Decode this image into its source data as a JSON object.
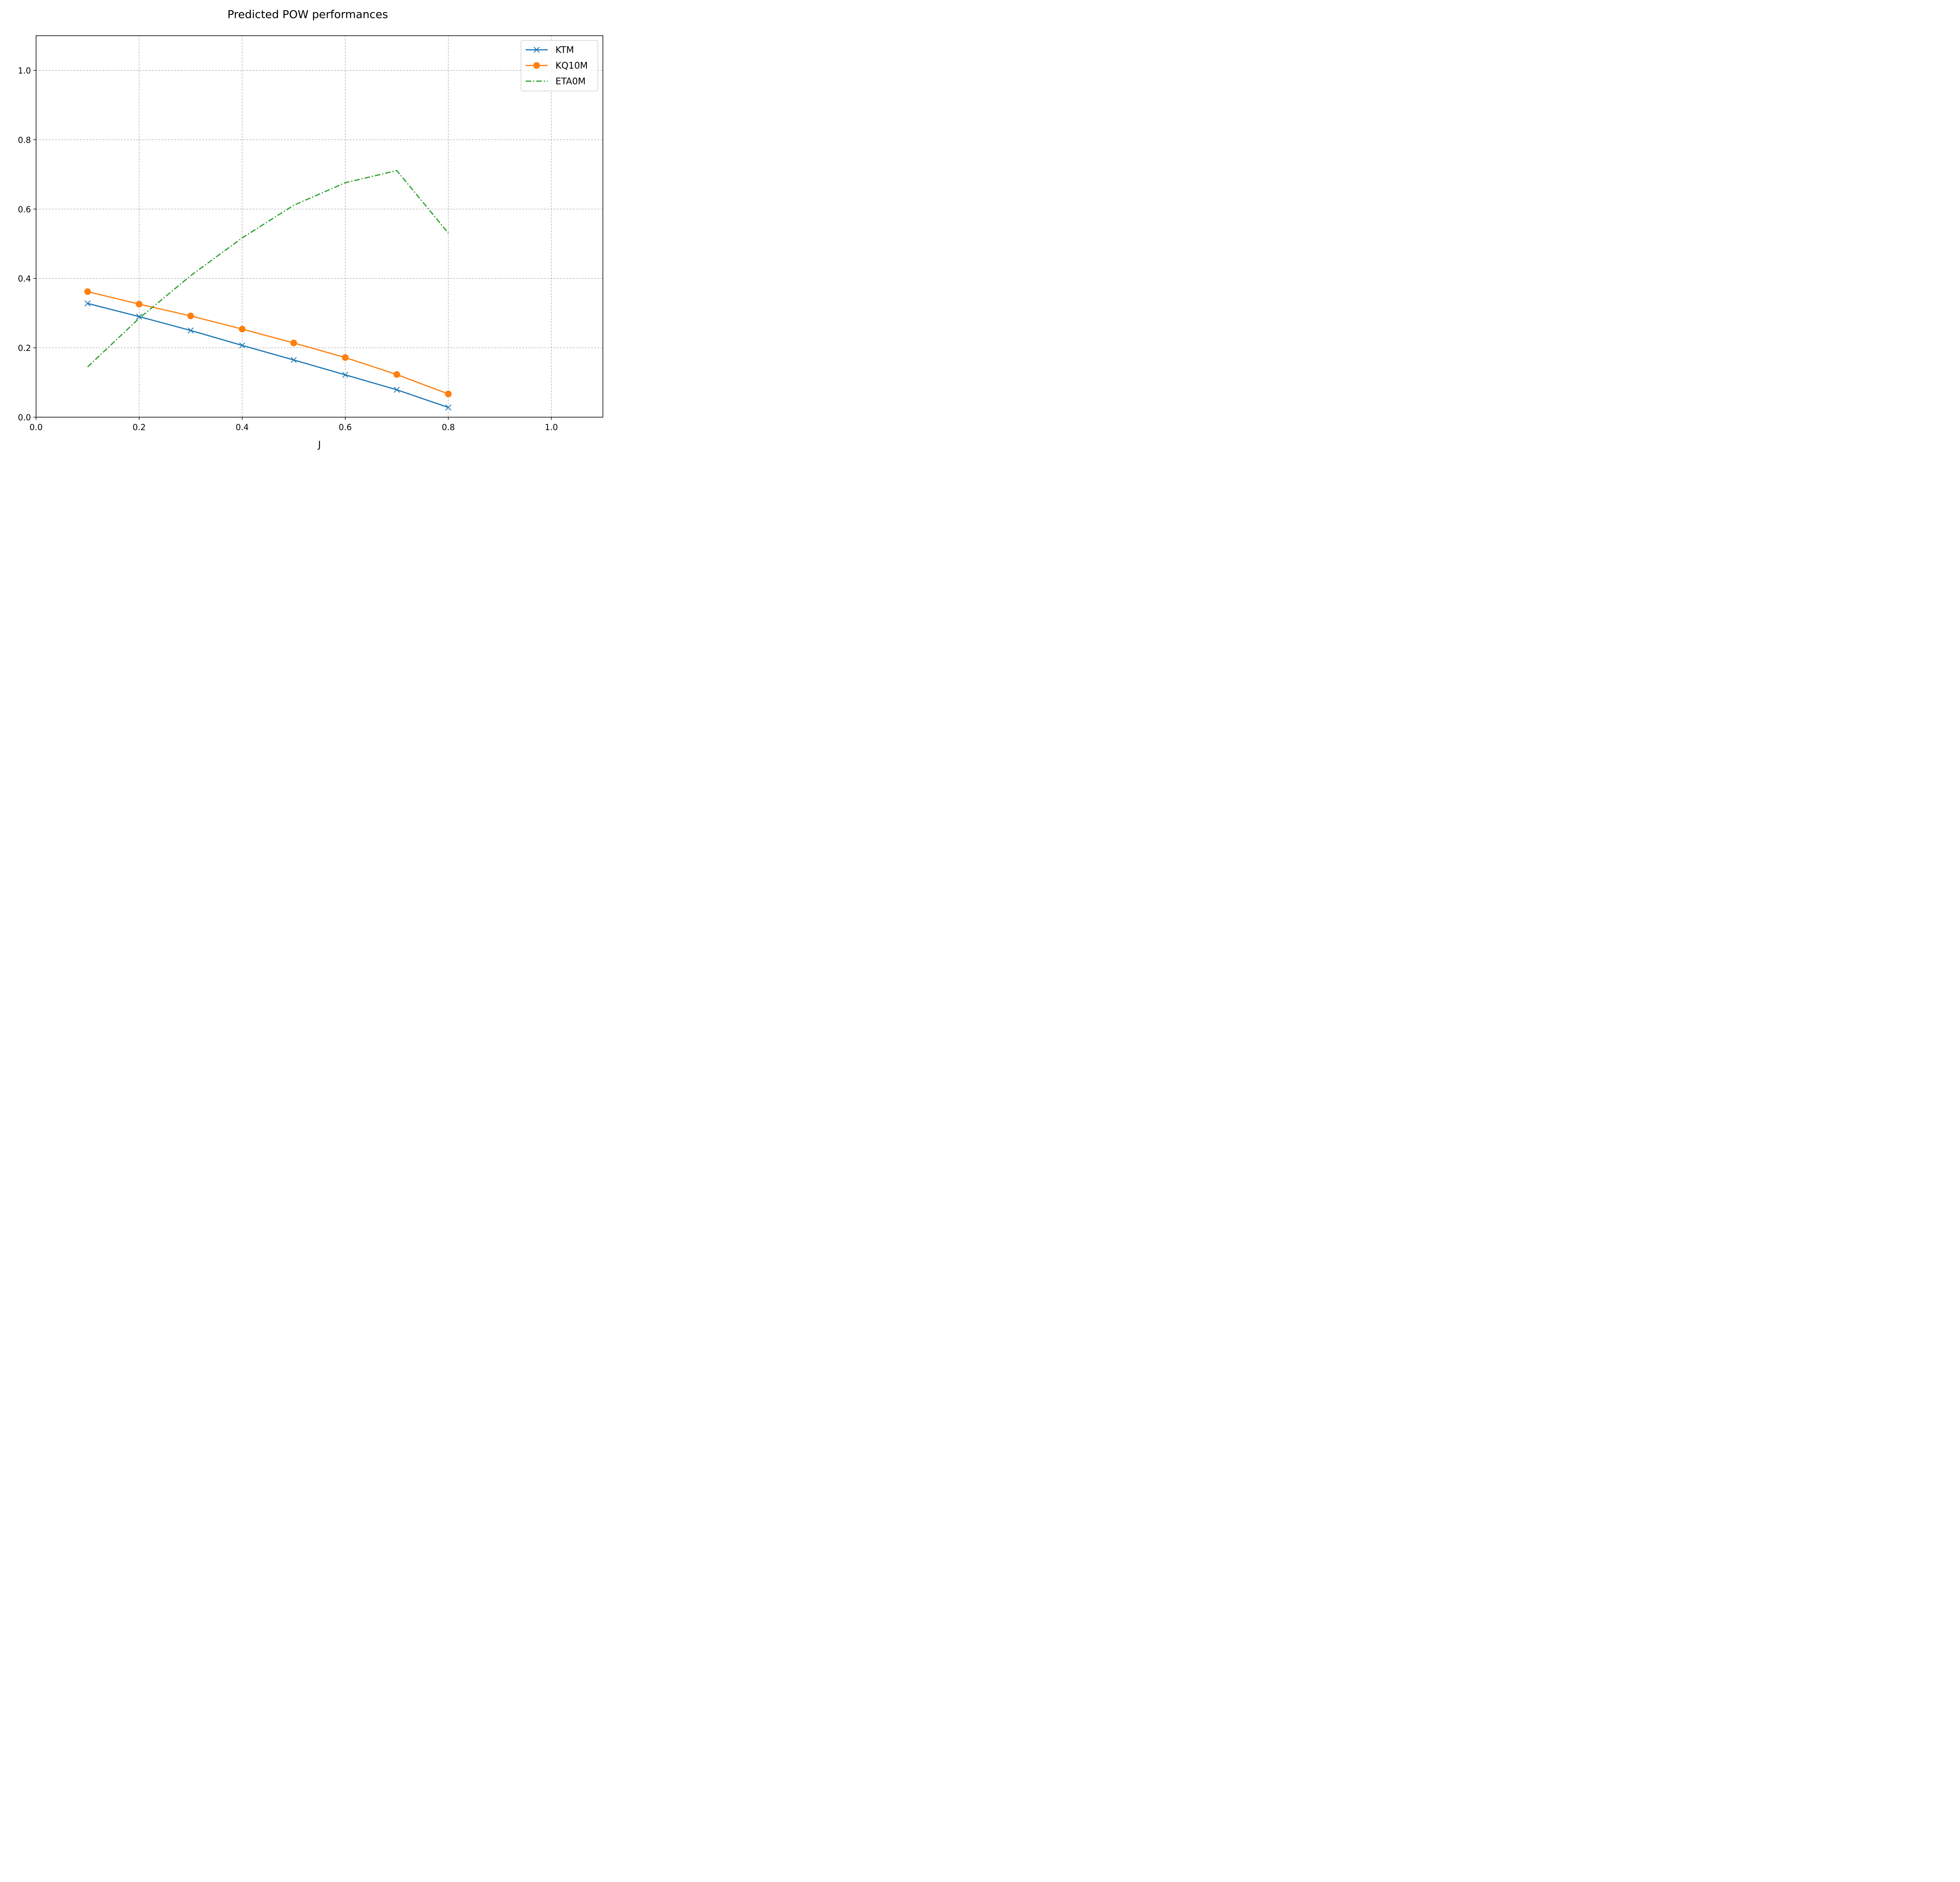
{
  "chart_data": {
    "type": "line",
    "title": "Predicted POW performances",
    "xlabel": "J",
    "ylabel": "",
    "xlim": [
      0.0,
      1.1
    ],
    "ylim": [
      0.0,
      1.1
    ],
    "xticks": [
      0.0,
      0.2,
      0.4,
      0.6,
      0.8,
      1.0
    ],
    "yticks": [
      0.0,
      0.2,
      0.4,
      0.6,
      0.8,
      1.0
    ],
    "xtick_labels": [
      "0.0",
      "0.2",
      "0.4",
      "0.6",
      "0.8",
      "1.0"
    ],
    "ytick_labels": [
      "0.0",
      "0.2",
      "0.4",
      "0.6",
      "0.8",
      "1.0"
    ],
    "grid": true,
    "legend_position": "top-right",
    "x": [
      0.1,
      0.2,
      0.3,
      0.4,
      0.5,
      0.6,
      0.7,
      0.8
    ],
    "series": [
      {
        "name": "KTM",
        "color": "#1f77b4",
        "marker": "x",
        "linestyle": "solid",
        "values": [
          0.328,
          0.29,
          0.25,
          0.207,
          0.165,
          0.122,
          0.079,
          0.028
        ]
      },
      {
        "name": "KQ10M",
        "color": "#ff7f0e",
        "marker": "circle",
        "linestyle": "solid",
        "values": [
          0.362,
          0.326,
          0.292,
          0.254,
          0.214,
          0.172,
          0.123,
          0.067
        ]
      },
      {
        "name": "ETA0M",
        "color": "#2ca02c",
        "marker": "none",
        "linestyle": "dashdot",
        "values": [
          0.145,
          0.285,
          0.408,
          0.517,
          0.611,
          0.676,
          0.711,
          0.531
        ]
      }
    ]
  }
}
